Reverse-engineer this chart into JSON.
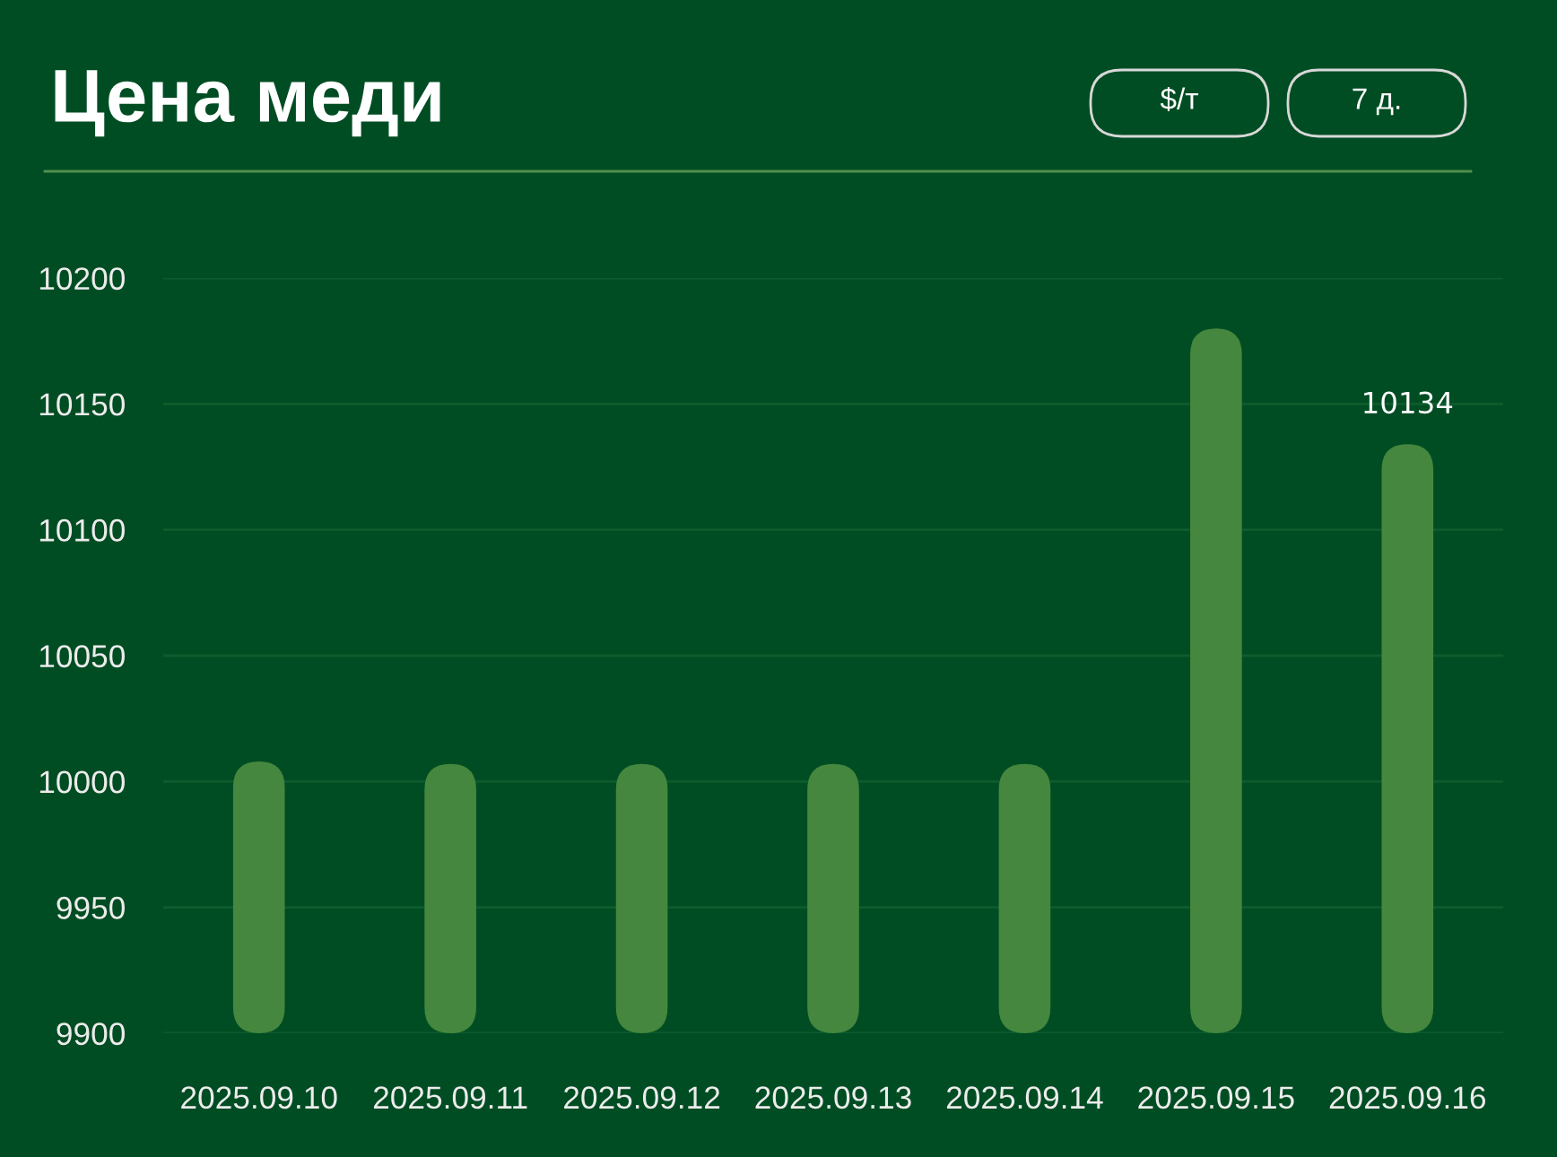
{
  "chart_data": {
    "type": "bar",
    "title": "Цена меди",
    "annotations": [
      "$/т",
      "7 д."
    ],
    "categories": [
      "2025.09.10",
      "2025.09.11",
      "2025.09.12",
      "2025.09.13",
      "2025.09.14",
      "2025.09.15",
      "2025.09.16"
    ],
    "values": [
      10008,
      10007,
      10007,
      10007,
      10007,
      10180,
      10134
    ],
    "value_labels": [
      null,
      null,
      null,
      null,
      null,
      null,
      "10134"
    ],
    "color": "#45873e",
    "ylim": [
      9900,
      10200
    ],
    "yticks": [
      9900,
      9950,
      10000,
      10050,
      10100,
      10150,
      10200
    ],
    "grid": "y"
  }
}
